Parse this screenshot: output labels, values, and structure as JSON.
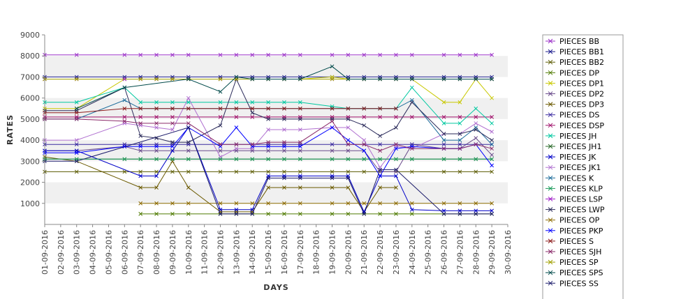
{
  "chart_data": {
    "type": "line",
    "xlabel": "DAYS",
    "ylabel": "RATES",
    "ylim": [
      0,
      9000
    ],
    "yticks": [
      1000,
      2000,
      3000,
      4000,
      5000,
      6000,
      7000,
      8000,
      9000
    ],
    "grid": "alternating horizontal bands",
    "legend": "right",
    "x": [
      "01-09-2016",
      "02-09-2016",
      "03-09-2016",
      "04-09-2016",
      "05-09-2016",
      "06-09-2016",
      "07-09-2016",
      "08-09-2016",
      "09-09-2016",
      "10-09-2016",
      "11-09-2016",
      "12-09-2016",
      "13-09-2016",
      "14-09-2016",
      "15-09-2016",
      "16-09-2016",
      "17-09-2016",
      "18-09-2016",
      "19-09-2016",
      "20-09-2016",
      "21-09-2016",
      "22-09-2016",
      "23-09-2016",
      "24-09-2016",
      "25-09-2016",
      "26-09-2016",
      "27-09-2016",
      "28-09-2016",
      "29-09-2016",
      "30-09-2016"
    ],
    "series": [
      {
        "name": "PIECES BB",
        "color": "#9b30c8",
        "values": [
          8050,
          null,
          8050,
          null,
          null,
          8050,
          8050,
          8050,
          8050,
          8050,
          null,
          8050,
          8050,
          8050,
          8050,
          8050,
          8050,
          null,
          8050,
          8050,
          8050,
          8050,
          8050,
          8050,
          null,
          8050,
          8050,
          8050,
          8050,
          null
        ]
      },
      {
        "name": "PIECES BB1",
        "color": "#1a1a8c",
        "values": [
          7000,
          null,
          7000,
          null,
          null,
          7000,
          7000,
          7000,
          7000,
          7000,
          null,
          7000,
          7000,
          7000,
          7000,
          7000,
          7000,
          null,
          7000,
          7000,
          7000,
          7000,
          7000,
          7000,
          null,
          7000,
          7000,
          7000,
          7000,
          null
        ]
      },
      {
        "name": "PIECES BB2",
        "color": "#5a5a00",
        "values": [
          2500,
          null,
          2500,
          null,
          null,
          2500,
          2500,
          2500,
          2500,
          2500,
          null,
          2500,
          2500,
          2500,
          2500,
          2500,
          2500,
          null,
          2500,
          2500,
          2500,
          2500,
          2500,
          2500,
          null,
          2500,
          2500,
          2500,
          2500,
          null
        ]
      },
      {
        "name": "PIECES DP",
        "color": "#4e7a00",
        "values": [
          null,
          null,
          null,
          null,
          null,
          null,
          500,
          500,
          500,
          500,
          null,
          500,
          500,
          500,
          500,
          500,
          500,
          null,
          500,
          500,
          500,
          500,
          500,
          500,
          null,
          500,
          500,
          500,
          500,
          null
        ]
      },
      {
        "name": "PIECES DP1",
        "color": "#c8c800",
        "values": [
          5500,
          null,
          5500,
          null,
          null,
          6900,
          6900,
          6900,
          6900,
          6900,
          null,
          6900,
          6900,
          6900,
          6900,
          6900,
          6900,
          null,
          7000,
          6900,
          6900,
          6900,
          6900,
          6900,
          null,
          5800,
          5800,
          6900,
          6000,
          null
        ]
      },
      {
        "name": "PIECES DP2",
        "color": "#6a4c8c",
        "values": [
          3500,
          null,
          3500,
          null,
          null,
          3700,
          3500,
          3500,
          3500,
          3500,
          null,
          3500,
          3500,
          3500,
          3500,
          3500,
          3500,
          null,
          3500,
          3500,
          3500,
          2500,
          2500,
          3800,
          null,
          3600,
          3600,
          4100,
          3300,
          null
        ]
      },
      {
        "name": "PIECES DP3",
        "color": "#6b5a00",
        "values": [
          3200,
          null,
          3000,
          null,
          null,
          null,
          1750,
          1750,
          3000,
          1750,
          null,
          600,
          600,
          600,
          1750,
          1750,
          1750,
          null,
          1750,
          1750,
          600,
          1750,
          1750,
          null,
          null,
          null,
          null,
          null,
          null,
          null
        ]
      },
      {
        "name": "PIECES DS",
        "color": "#3a2aa0",
        "values": [
          3800,
          null,
          3800,
          null,
          null,
          3800,
          3800,
          3800,
          3800,
          3800,
          null,
          3800,
          3800,
          3800,
          3800,
          3800,
          3800,
          null,
          3800,
          3800,
          3800,
          3800,
          3800,
          3800,
          null,
          3800,
          3800,
          3800,
          3800,
          null
        ]
      },
      {
        "name": "PIECES DSP",
        "color": "#a0106a",
        "values": [
          5100,
          null,
          5100,
          null,
          null,
          5100,
          5100,
          5100,
          5100,
          5100,
          null,
          5100,
          5100,
          5100,
          5100,
          5100,
          5100,
          null,
          5100,
          5100,
          5100,
          5100,
          5100,
          5100,
          null,
          5100,
          5100,
          5100,
          5100,
          null
        ]
      },
      {
        "name": "PIECES JH",
        "color": "#00c8a0",
        "values": [
          5800,
          null,
          5800,
          null,
          null,
          6500,
          5800,
          5800,
          5800,
          5800,
          null,
          5800,
          5800,
          5800,
          5800,
          5800,
          5800,
          null,
          5600,
          5500,
          5500,
          5500,
          5500,
          6500,
          null,
          4800,
          4800,
          5500,
          4800,
          null
        ]
      },
      {
        "name": "PIECES JH1",
        "color": "#2a6a2a",
        "values": [
          3100,
          null,
          3100,
          null,
          null,
          3100,
          3100,
          3100,
          3100,
          3100,
          null,
          3100,
          3100,
          3100,
          3100,
          3100,
          3100,
          null,
          3100,
          3100,
          3100,
          3100,
          3100,
          3100,
          null,
          3100,
          3100,
          3100,
          3100,
          null
        ]
      },
      {
        "name": "PIECES JK",
        "color": "#0000c8",
        "values": [
          3500,
          null,
          3500,
          null,
          null,
          null,
          2300,
          2300,
          3500,
          4600,
          null,
          700,
          700,
          700,
          2300,
          2300,
          2300,
          null,
          2300,
          2300,
          600,
          2300,
          2300,
          700,
          null,
          650,
          650,
          650,
          650,
          null
        ]
      },
      {
        "name": "PIECES JK1",
        "color": "#b070d0",
        "values": [
          4000,
          null,
          4000,
          null,
          null,
          4800,
          4700,
          4600,
          4500,
          6000,
          null,
          3200,
          3600,
          3600,
          4500,
          4500,
          4500,
          null,
          4600,
          4600,
          4000,
          2700,
          3700,
          3600,
          null,
          4300,
          4300,
          4800,
          4400,
          null
        ]
      },
      {
        "name": "PIECES K",
        "color": "#1a6a9a",
        "values": [
          5000,
          null,
          5000,
          null,
          null,
          5900,
          5500,
          5500,
          5500,
          5500,
          null,
          5500,
          5500,
          5500,
          5500,
          5500,
          5500,
          null,
          5500,
          5500,
          5500,
          5500,
          5500,
          5900,
          null,
          4000,
          4000,
          4600,
          3800,
          null
        ]
      },
      {
        "name": "PIECES KLP",
        "color": "#1a9a5a",
        "values": [
          3100,
          null,
          3100,
          null,
          null,
          3100,
          3100,
          3100,
          3100,
          3100,
          null,
          3100,
          3100,
          3100,
          3100,
          3100,
          3100,
          null,
          3100,
          3100,
          3100,
          3100,
          3100,
          3100,
          null,
          3100,
          3100,
          3100,
          3100,
          null
        ]
      },
      {
        "name": "PIECES LSP",
        "color": "#a020c8",
        "values": [
          6900,
          null,
          6900,
          null,
          null,
          6900,
          6900,
          6900,
          6900,
          6900,
          null,
          6900,
          6900,
          6900,
          6900,
          6900,
          6900,
          null,
          6900,
          6900,
          6900,
          6900,
          6900,
          6900,
          null,
          6900,
          6900,
          6900,
          6900,
          null
        ]
      },
      {
        "name": "PIECES LWP",
        "color": "#2a2a5a",
        "values": [
          5400,
          null,
          5400,
          null,
          null,
          6500,
          4200,
          4100,
          3900,
          3900,
          null,
          4700,
          6900,
          5300,
          5000,
          5000,
          5000,
          null,
          5000,
          5000,
          4700,
          4200,
          4600,
          5800,
          null,
          4300,
          4300,
          4500,
          4000,
          null
        ]
      },
      {
        "name": "PIECES OP",
        "color": "#8c6a00",
        "values": [
          null,
          null,
          null,
          null,
          null,
          null,
          1000,
          1000,
          1000,
          1000,
          null,
          1000,
          1000,
          1000,
          1000,
          1000,
          1000,
          null,
          1000,
          1000,
          1000,
          1000,
          1000,
          1000,
          null,
          1000,
          1000,
          1000,
          1000,
          null
        ]
      },
      {
        "name": "PIECES PKP",
        "color": "#0000ff",
        "values": [
          3400,
          null,
          3400,
          null,
          null,
          3700,
          3700,
          3700,
          3700,
          4600,
          null,
          3700,
          4600,
          3700,
          3700,
          3700,
          3700,
          null,
          4600,
          4000,
          3500,
          2300,
          3600,
          3700,
          null,
          3600,
          3600,
          3800,
          2800,
          null
        ]
      },
      {
        "name": "PIECES S",
        "color": "#8c1a1a",
        "values": [
          5300,
          null,
          5300,
          null,
          null,
          5500,
          5500,
          5500,
          5500,
          5500,
          null,
          5500,
          5500,
          5500,
          5500,
          5500,
          5500,
          null,
          5500,
          5500,
          5500,
          5500,
          5500,
          null,
          null,
          null,
          null,
          null,
          null,
          null
        ]
      },
      {
        "name": "PIECES SJH",
        "color": "#8a2a6a",
        "values": [
          5000,
          null,
          5000,
          null,
          null,
          4900,
          4800,
          4800,
          4800,
          4800,
          null,
          3800,
          3800,
          3800,
          3900,
          3900,
          3900,
          null,
          4900,
          3800,
          3800,
          3500,
          3800,
          3600,
          null,
          3600,
          3600,
          3800,
          3600,
          null
        ]
      },
      {
        "name": "PIECES SP",
        "color": "#a0a000",
        "values": [
          6900,
          null,
          6900,
          null,
          null,
          null,
          6900,
          6900,
          6900,
          6900,
          null,
          6900,
          6900,
          6900,
          6900,
          6900,
          6900,
          null,
          6900,
          6900,
          6900,
          6900,
          6900,
          6900,
          null,
          6900,
          6900,
          6900,
          6900,
          null
        ]
      },
      {
        "name": "PIECES SPS",
        "color": "#004a4a",
        "values": [
          null,
          null,
          5500,
          null,
          null,
          6500,
          null,
          null,
          null,
          6900,
          null,
          6300,
          7000,
          6900,
          6900,
          6900,
          6900,
          null,
          7500,
          6900,
          6900,
          6900,
          6900,
          6900,
          null,
          6900,
          6900,
          6900,
          6900,
          null
        ]
      },
      {
        "name": "PIECES SS",
        "color": "#1a1a6a",
        "values": [
          3000,
          null,
          3000,
          null,
          null,
          null,
          null,
          null,
          null,
          4600,
          null,
          500,
          500,
          500,
          2200,
          2200,
          2200,
          null,
          2200,
          2200,
          500,
          2600,
          2600,
          null,
          null,
          500,
          500,
          500,
          500,
          null
        ]
      }
    ]
  }
}
